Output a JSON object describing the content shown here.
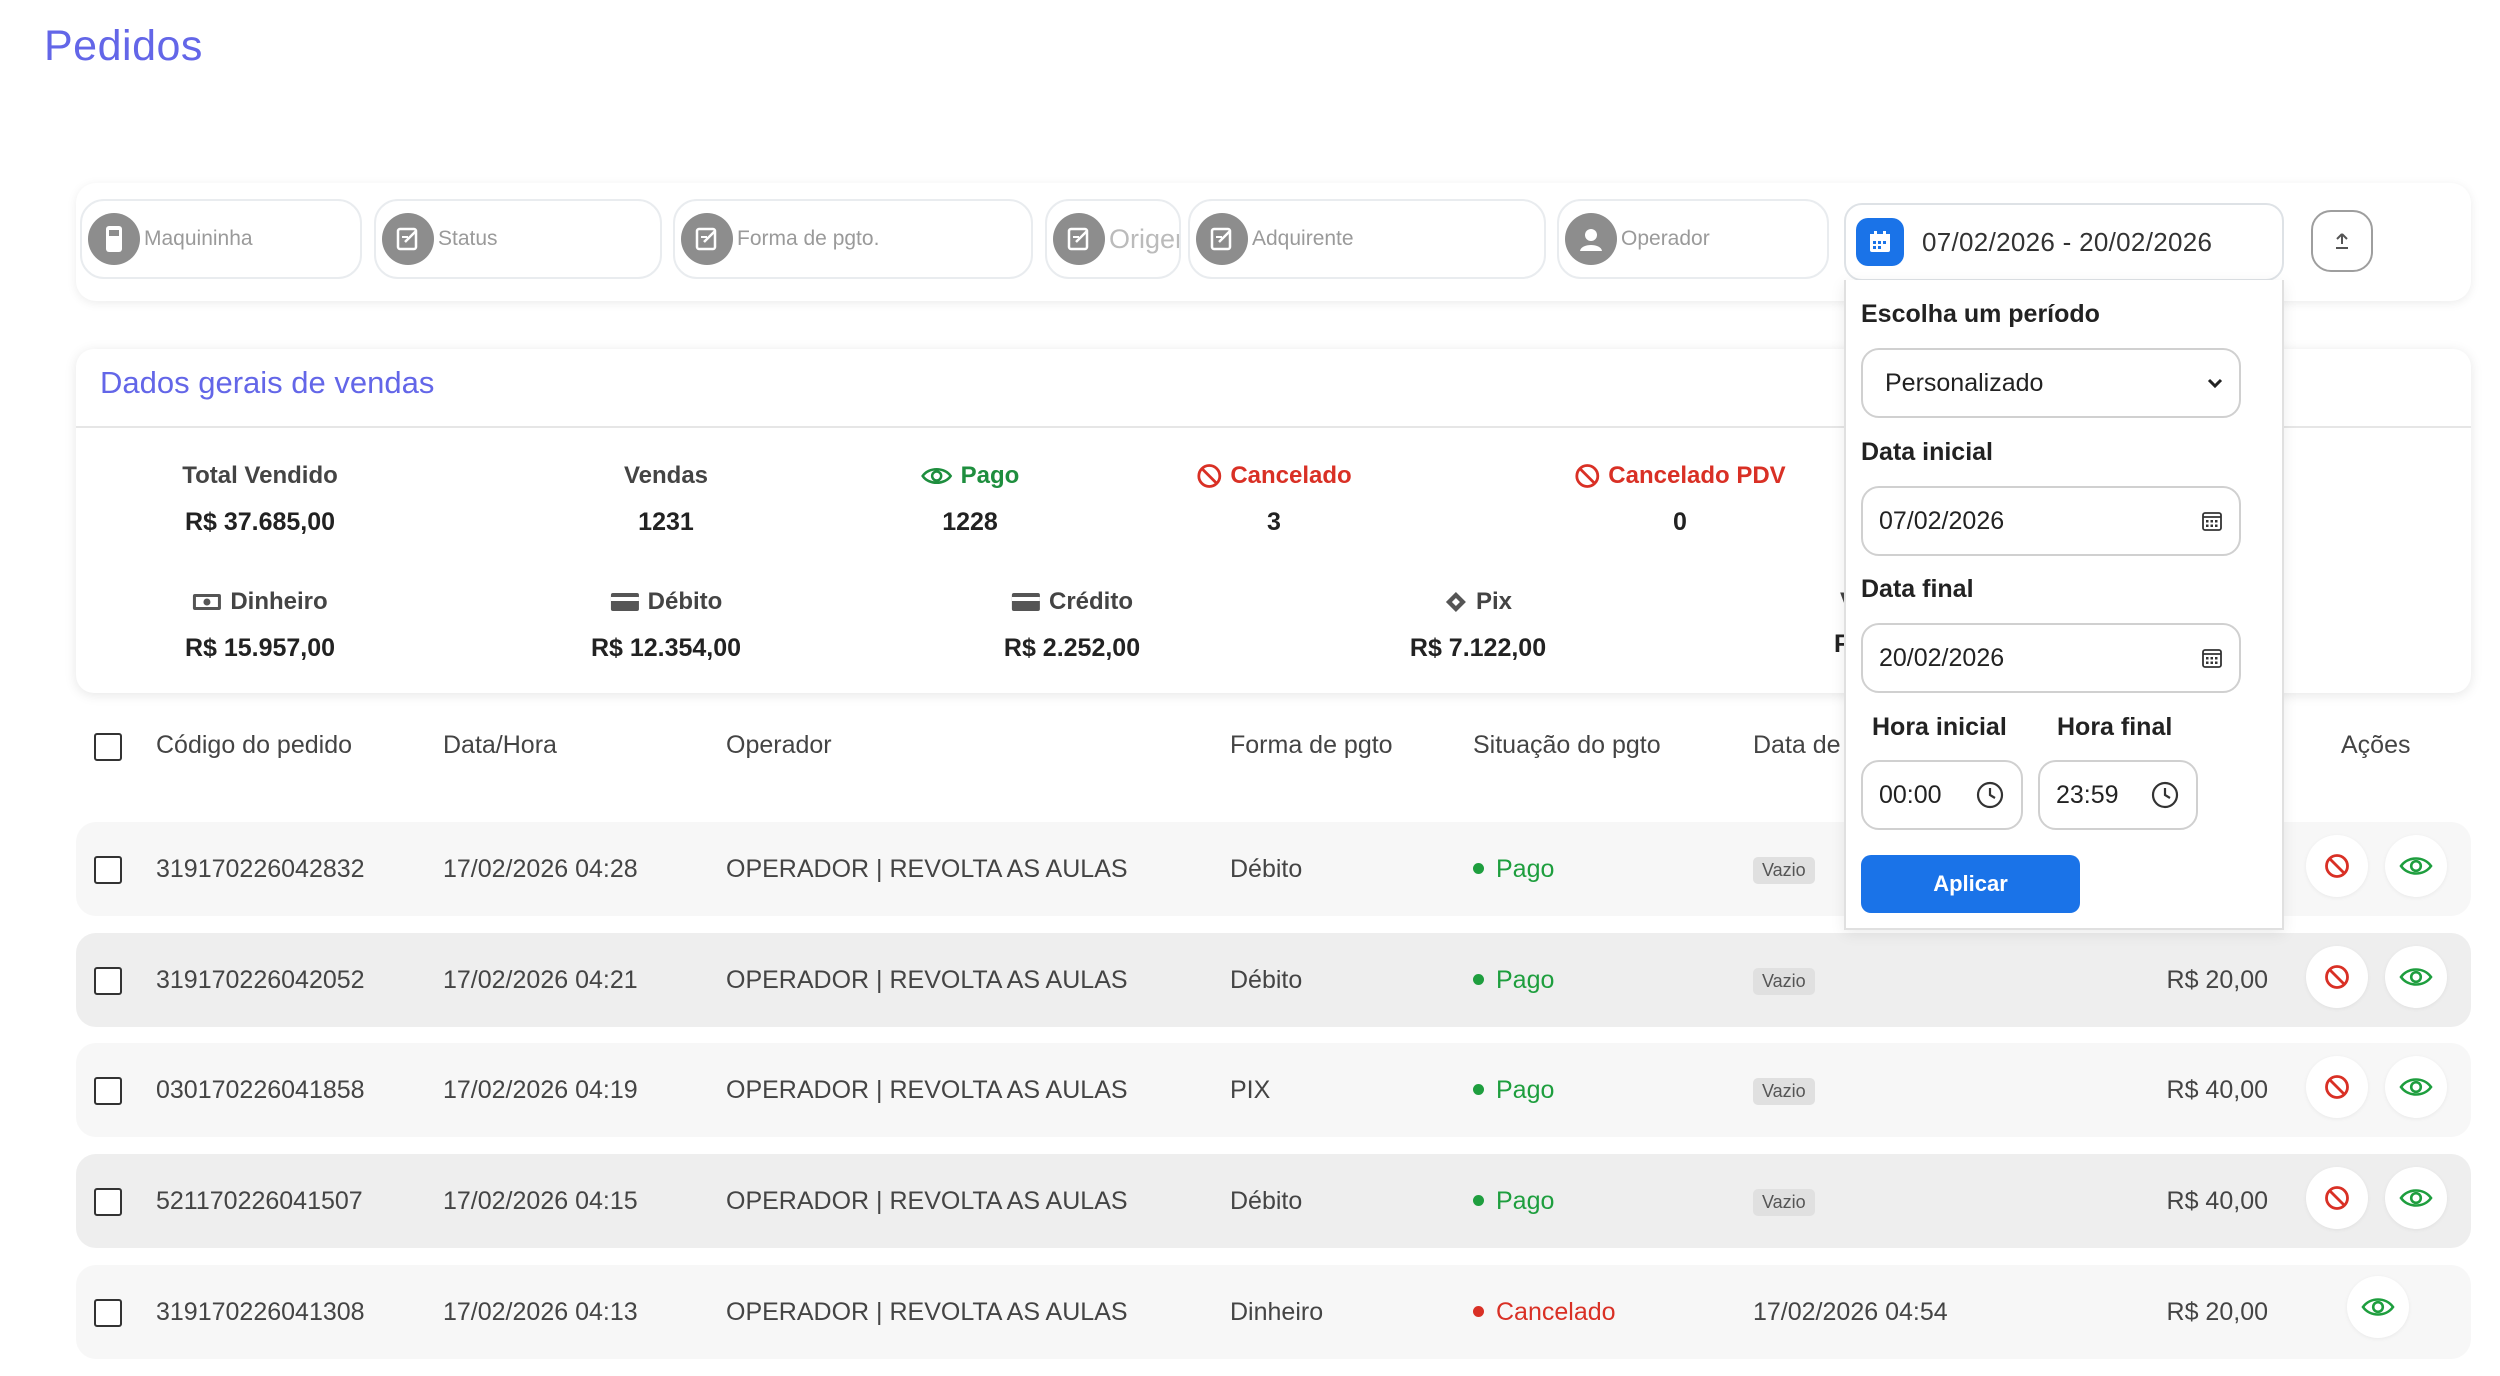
{
  "page": {
    "title": "Pedidos"
  },
  "filters": {
    "maquininha": "Maquininha",
    "status": "Status",
    "forma_pgto": "Forma de pgto.",
    "origem": "Origem",
    "adquirente": "Adquirente",
    "operador": "Operador",
    "date_range": "07/02/2026 - 20/02/2026"
  },
  "summary": {
    "title": "Dados gerais de vendas",
    "total_vendido": {
      "label": "Total Vendido",
      "value": "R$ 37.685,00"
    },
    "vendas": {
      "label": "Vendas",
      "value": "1231"
    },
    "pago": {
      "label": "Pago",
      "value": "1228"
    },
    "cancelado": {
      "label": "Cancelado",
      "value": "3"
    },
    "cancelado_pdv": {
      "label": "Cancelado PDV",
      "value": "0"
    },
    "dinheiro": {
      "label": "Dinheiro",
      "value": "R$ 15.957,00"
    },
    "debito": {
      "label": "Débito",
      "value": "R$ 12.354,00"
    },
    "credito": {
      "label": "Crédito",
      "value": "R$ 2.252,00"
    },
    "pix": {
      "label": "Pix",
      "value": "R$ 7.122,00"
    },
    "partial_label": "V",
    "partial_value": "F"
  },
  "table": {
    "headers": {
      "codigo": "Código do pedido",
      "data_hora": "Data/Hora",
      "operador": "Operador",
      "forma": "Forma de pgto",
      "situacao": "Situação do pgto",
      "data_cancel": "Data de",
      "acoes": "Ações"
    },
    "rows": [
      {
        "codigo": "319170226042832",
        "data": "17/02/2026 04:28",
        "operador": "OPERADOR | REVOLTA AS AULAS",
        "forma": "Débito",
        "situacao": "Pago",
        "data_cancel": "Vazio",
        "valor": ""
      },
      {
        "codigo": "319170226042052",
        "data": "17/02/2026 04:21",
        "operador": "OPERADOR | REVOLTA AS AULAS",
        "forma": "Débito",
        "situacao": "Pago",
        "data_cancel": "Vazio",
        "valor": "R$ 20,00"
      },
      {
        "codigo": "030170226041858",
        "data": "17/02/2026 04:19",
        "operador": "OPERADOR | REVOLTA AS AULAS",
        "forma": "PIX",
        "situacao": "Pago",
        "data_cancel": "Vazio",
        "valor": "R$ 40,00"
      },
      {
        "codigo": "521170226041507",
        "data": "17/02/2026 04:15",
        "operador": "OPERADOR | REVOLTA AS AULAS",
        "forma": "Débito",
        "situacao": "Pago",
        "data_cancel": "Vazio",
        "valor": "R$ 40,00"
      },
      {
        "codigo": "319170226041308",
        "data": "17/02/2026 04:13",
        "operador": "OPERADOR | REVOLTA AS AULAS",
        "forma": "Dinheiro",
        "situacao": "Cancelado",
        "data_cancel": "17/02/2026 04:54",
        "valor": "R$ 20,00"
      }
    ]
  },
  "period_dropdown": {
    "title": "Escolha um período",
    "selected": "Personalizado",
    "data_inicial_label": "Data inicial",
    "data_inicial": "07/02/2026",
    "data_final_label": "Data final",
    "data_final": "20/02/2026",
    "hora_inicial_label": "Hora inicial",
    "hora_inicial": "00:00",
    "hora_final_label": "Hora final",
    "hora_final": "23:59",
    "apply": "Aplicar"
  },
  "colors": {
    "accent": "#6366e8",
    "primary": "#1a73e8",
    "success": "#1e9e3e",
    "danger": "#d93025"
  }
}
